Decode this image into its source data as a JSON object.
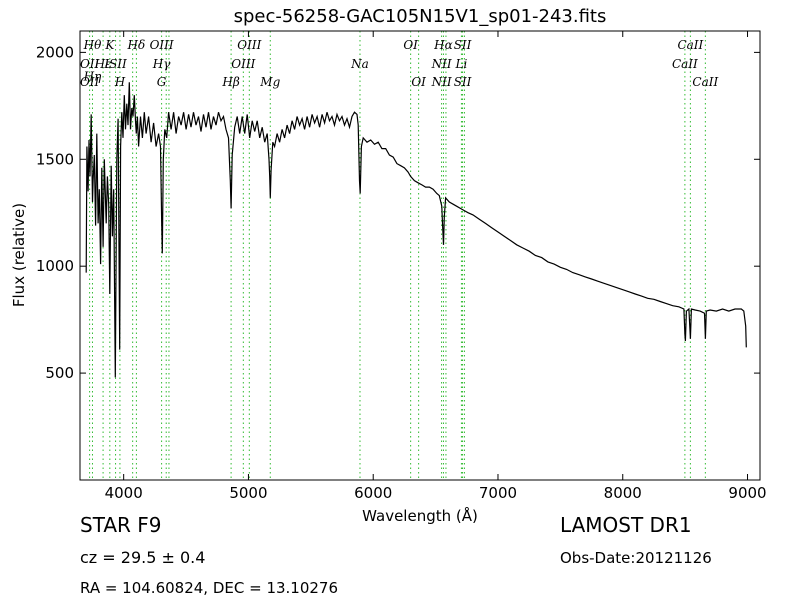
{
  "chart_data": {
    "type": "line",
    "title": "spec-56258-GAC105N15V1_sp01-243.fits",
    "xlabel": "Wavelength (Å)",
    "ylabel": "Flux (relative)",
    "xlim": [
      3650,
      9100
    ],
    "ylim": [
      0,
      2100
    ],
    "xticks": [
      4000,
      5000,
      6000,
      7000,
      8000,
      9000
    ],
    "yticks": [
      500,
      1000,
      1500,
      2000
    ],
    "grid": false,
    "line_color": "#000000",
    "marker_color": "#33bb33",
    "series": [
      {
        "values": [
          [
            3700,
            970
          ],
          [
            3705,
            1560
          ],
          [
            3715,
            1350
          ],
          [
            3722,
            1590
          ],
          [
            3730,
            1420
          ],
          [
            3740,
            1710
          ],
          [
            3750,
            1300
          ],
          [
            3755,
            1400
          ],
          [
            3765,
            1520
          ],
          [
            3775,
            1190
          ],
          [
            3785,
            1620
          ],
          [
            3795,
            1200
          ],
          [
            3805,
            1360
          ],
          [
            3815,
            1010
          ],
          [
            3825,
            1460
          ],
          [
            3835,
            1090
          ],
          [
            3845,
            1500
          ],
          [
            3860,
            1200
          ],
          [
            3870,
            1420
          ],
          [
            3880,
            1290
          ],
          [
            3889,
            870
          ],
          [
            3900,
            1470
          ],
          [
            3910,
            1140
          ],
          [
            3920,
            1360
          ],
          [
            3933,
            480
          ],
          [
            3945,
            1500
          ],
          [
            3955,
            1690
          ],
          [
            3968,
            610
          ],
          [
            3975,
            1560
          ],
          [
            3985,
            1720
          ],
          [
            3995,
            1600
          ],
          [
            4005,
            1800
          ],
          [
            4015,
            1640
          ],
          [
            4025,
            1760
          ],
          [
            4035,
            1660
          ],
          [
            4045,
            1860
          ],
          [
            4055,
            1640
          ],
          [
            4065,
            1740
          ],
          [
            4075,
            1700
          ],
          [
            4085,
            1800
          ],
          [
            4095,
            1680
          ],
          [
            4101,
            1620
          ],
          [
            4110,
            1700
          ],
          [
            4120,
            1560
          ],
          [
            4135,
            1700
          ],
          [
            4150,
            1600
          ],
          [
            4165,
            1720
          ],
          [
            4180,
            1620
          ],
          [
            4200,
            1700
          ],
          [
            4220,
            1580
          ],
          [
            4240,
            1670
          ],
          [
            4260,
            1560
          ],
          [
            4280,
            1620
          ],
          [
            4295,
            1560
          ],
          [
            4305,
            1200
          ],
          [
            4310,
            1060
          ],
          [
            4318,
            1500
          ],
          [
            4330,
            1640
          ],
          [
            4345,
            1600
          ],
          [
            4360,
            1720
          ],
          [
            4380,
            1640
          ],
          [
            4400,
            1720
          ],
          [
            4420,
            1620
          ],
          [
            4440,
            1700
          ],
          [
            4460,
            1660
          ],
          [
            4480,
            1720
          ],
          [
            4500,
            1640
          ],
          [
            4520,
            1710
          ],
          [
            4540,
            1650
          ],
          [
            4560,
            1720
          ],
          [
            4580,
            1660
          ],
          [
            4600,
            1700
          ],
          [
            4620,
            1630
          ],
          [
            4640,
            1710
          ],
          [
            4660,
            1650
          ],
          [
            4680,
            1720
          ],
          [
            4700,
            1640
          ],
          [
            4720,
            1700
          ],
          [
            4740,
            1660
          ],
          [
            4760,
            1720
          ],
          [
            4780,
            1680
          ],
          [
            4800,
            1700
          ],
          [
            4820,
            1640
          ],
          [
            4840,
            1600
          ],
          [
            4855,
            1400
          ],
          [
            4861,
            1270
          ],
          [
            4870,
            1520
          ],
          [
            4890,
            1650
          ],
          [
            4910,
            1700
          ],
          [
            4930,
            1620
          ],
          [
            4950,
            1700
          ],
          [
            4970,
            1620
          ],
          [
            4990,
            1710
          ],
          [
            5010,
            1600
          ],
          [
            5030,
            1680
          ],
          [
            5050,
            1630
          ],
          [
            5070,
            1680
          ],
          [
            5090,
            1600
          ],
          [
            5110,
            1650
          ],
          [
            5130,
            1580
          ],
          [
            5150,
            1620
          ],
          [
            5165,
            1500
          ],
          [
            5170,
            1420
          ],
          [
            5175,
            1320
          ],
          [
            5182,
            1450
          ],
          [
            5195,
            1580
          ],
          [
            5210,
            1560
          ],
          [
            5230,
            1620
          ],
          [
            5250,
            1580
          ],
          [
            5270,
            1640
          ],
          [
            5290,
            1600
          ],
          [
            5310,
            1660
          ],
          [
            5330,
            1620
          ],
          [
            5350,
            1680
          ],
          [
            5370,
            1640
          ],
          [
            5390,
            1700
          ],
          [
            5410,
            1660
          ],
          [
            5430,
            1690
          ],
          [
            5450,
            1640
          ],
          [
            5470,
            1700
          ],
          [
            5490,
            1650
          ],
          [
            5510,
            1710
          ],
          [
            5530,
            1670
          ],
          [
            5550,
            1700
          ],
          [
            5570,
            1650
          ],
          [
            5590,
            1710
          ],
          [
            5610,
            1670
          ],
          [
            5630,
            1720
          ],
          [
            5650,
            1680
          ],
          [
            5670,
            1700
          ],
          [
            5690,
            1660
          ],
          [
            5710,
            1710
          ],
          [
            5730,
            1680
          ],
          [
            5750,
            1700
          ],
          [
            5770,
            1660
          ],
          [
            5790,
            1690
          ],
          [
            5810,
            1650
          ],
          [
            5830,
            1700
          ],
          [
            5850,
            1720
          ],
          [
            5870,
            1710
          ],
          [
            5880,
            1660
          ],
          [
            5890,
            1400
          ],
          [
            5896,
            1340
          ],
          [
            5905,
            1560
          ],
          [
            5920,
            1600
          ],
          [
            5950,
            1580
          ],
          [
            5980,
            1590
          ],
          [
            6010,
            1570
          ],
          [
            6040,
            1580
          ],
          [
            6070,
            1550
          ],
          [
            6100,
            1550
          ],
          [
            6130,
            1520
          ],
          [
            6160,
            1510
          ],
          [
            6190,
            1480
          ],
          [
            6220,
            1470
          ],
          [
            6250,
            1460
          ],
          [
            6280,
            1440
          ],
          [
            6300,
            1420
          ],
          [
            6330,
            1400
          ],
          [
            6360,
            1390
          ],
          [
            6390,
            1380
          ],
          [
            6420,
            1370
          ],
          [
            6450,
            1370
          ],
          [
            6480,
            1360
          ],
          [
            6510,
            1340
          ],
          [
            6530,
            1330
          ],
          [
            6550,
            1280
          ],
          [
            6555,
            1200
          ],
          [
            6563,
            1100
          ],
          [
            6570,
            1230
          ],
          [
            6580,
            1320
          ],
          [
            6610,
            1300
          ],
          [
            6640,
            1290
          ],
          [
            6670,
            1280
          ],
          [
            6700,
            1270
          ],
          [
            6730,
            1260
          ],
          [
            6760,
            1250
          ],
          [
            6800,
            1240
          ],
          [
            6850,
            1220
          ],
          [
            6900,
            1200
          ],
          [
            6950,
            1180
          ],
          [
            7000,
            1160
          ],
          [
            7050,
            1140
          ],
          [
            7100,
            1120
          ],
          [
            7150,
            1100
          ],
          [
            7200,
            1085
          ],
          [
            7250,
            1070
          ],
          [
            7300,
            1050
          ],
          [
            7350,
            1040
          ],
          [
            7400,
            1020
          ],
          [
            7450,
            1010
          ],
          [
            7500,
            995
          ],
          [
            7550,
            985
          ],
          [
            7600,
            970
          ],
          [
            7650,
            960
          ],
          [
            7700,
            950
          ],
          [
            7750,
            940
          ],
          [
            7800,
            930
          ],
          [
            7850,
            920
          ],
          [
            7900,
            910
          ],
          [
            7950,
            900
          ],
          [
            8000,
            890
          ],
          [
            8050,
            880
          ],
          [
            8100,
            870
          ],
          [
            8150,
            860
          ],
          [
            8200,
            850
          ],
          [
            8250,
            845
          ],
          [
            8300,
            835
          ],
          [
            8350,
            825
          ],
          [
            8400,
            815
          ],
          [
            8450,
            810
          ],
          [
            8490,
            800
          ],
          [
            8498,
            680
          ],
          [
            8502,
            650
          ],
          [
            8510,
            790
          ],
          [
            8530,
            800
          ],
          [
            8542,
            660
          ],
          [
            8550,
            800
          ],
          [
            8580,
            795
          ],
          [
            8620,
            790
          ],
          [
            8655,
            780
          ],
          [
            8662,
            660
          ],
          [
            8670,
            790
          ],
          [
            8700,
            795
          ],
          [
            8750,
            790
          ],
          [
            8800,
            800
          ],
          [
            8850,
            790
          ],
          [
            8900,
            800
          ],
          [
            8950,
            800
          ],
          [
            8970,
            790
          ],
          [
            8985,
            720
          ],
          [
            8990,
            620
          ]
        ]
      }
    ],
    "lines": [
      {
        "wavelength": 3727,
        "labels": [
          "OII",
          "OII"
        ],
        "rows": [
          1,
          2
        ]
      },
      {
        "wavelength": 3750,
        "labels": [
          "Hθ",
          "Hη"
        ],
        "rows": [
          0,
          1.7
        ]
      },
      {
        "wavelength": 3835,
        "labels": [
          "Hε"
        ],
        "rows": [
          1
        ]
      },
      {
        "wavelength": 3889,
        "labels": [
          "K"
        ],
        "rows": [
          0
        ]
      },
      {
        "wavelength": 3935,
        "labels": [
          "ISII"
        ],
        "rows": [
          1
        ]
      },
      {
        "wavelength": 3970,
        "labels": [
          "H"
        ],
        "rows": [
          2
        ]
      },
      {
        "wavelength": 4072,
        "labels": [],
        "rows": []
      },
      {
        "wavelength": 4102,
        "labels": [
          "Hδ"
        ],
        "rows": [
          0
        ]
      },
      {
        "wavelength": 4304,
        "labels": [
          "OIII",
          "Hγ",
          "G"
        ],
        "rows": [
          0,
          1,
          2
        ]
      },
      {
        "wavelength": 4341,
        "labels": [],
        "rows": []
      },
      {
        "wavelength": 4363,
        "labels": [],
        "rows": []
      },
      {
        "wavelength": 4861,
        "labels": [
          "Hβ"
        ],
        "rows": [
          2
        ]
      },
      {
        "wavelength": 4959,
        "labels": [
          "OIII"
        ],
        "rows": [
          1
        ]
      },
      {
        "wavelength": 5007,
        "labels": [
          "OIII"
        ],
        "rows": [
          0
        ]
      },
      {
        "wavelength": 5175,
        "labels": [
          "Mg"
        ],
        "rows": [
          2
        ]
      },
      {
        "wavelength": 5894,
        "labels": [
          "Na"
        ],
        "rows": [
          1
        ]
      },
      {
        "wavelength": 6300,
        "labels": [
          "OI"
        ],
        "rows": [
          0
        ]
      },
      {
        "wavelength": 6364,
        "labels": [
          "OI"
        ],
        "rows": [
          2
        ]
      },
      {
        "wavelength": 6548,
        "labels": [
          "NII",
          "NII"
        ],
        "rows": [
          1,
          2
        ]
      },
      {
        "wavelength": 6563,
        "labels": [
          "Hα"
        ],
        "rows": [
          0
        ]
      },
      {
        "wavelength": 6583,
        "labels": [],
        "rows": []
      },
      {
        "wavelength": 6707,
        "labels": [
          "Li"
        ],
        "rows": [
          1
        ]
      },
      {
        "wavelength": 6716,
        "labels": [
          "SII",
          "SII"
        ],
        "rows": [
          0,
          2
        ]
      },
      {
        "wavelength": 6731,
        "labels": [],
        "rows": []
      },
      {
        "wavelength": 8498,
        "labels": [
          "CaII"
        ],
        "rows": [
          1
        ]
      },
      {
        "wavelength": 8542,
        "labels": [
          "CaII"
        ],
        "rows": [
          0
        ]
      },
      {
        "wavelength": 8662,
        "labels": [
          "CaII"
        ],
        "rows": [
          2
        ]
      }
    ]
  },
  "footer": {
    "object_class": "STAR   F9",
    "cz": "cz = 29.5 ± 0.4",
    "radec": "RA = 104.60824, DEC = 13.10276",
    "survey": "LAMOST DR1",
    "obs_date": "Obs-Date:20121126"
  }
}
